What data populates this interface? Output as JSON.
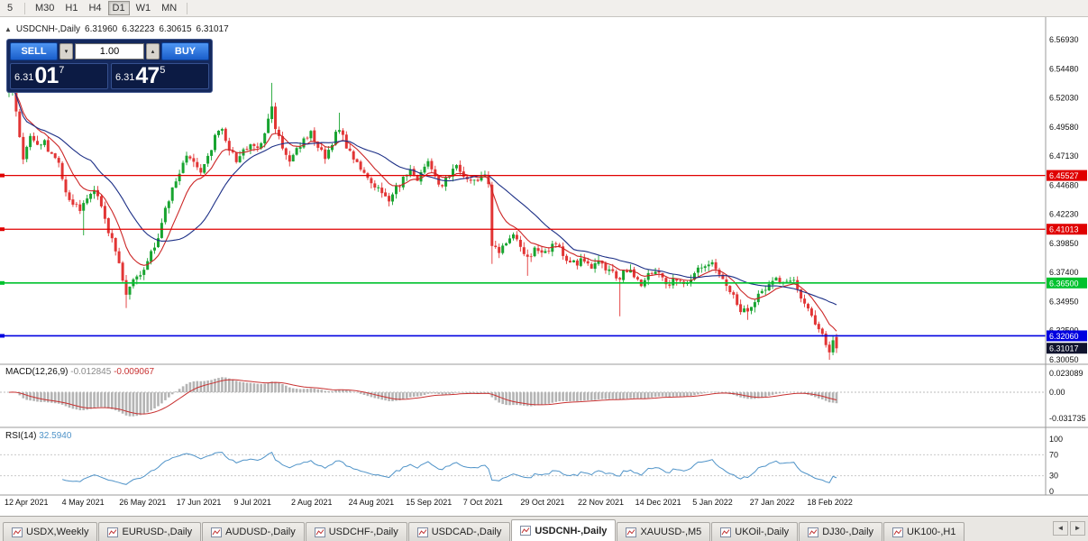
{
  "toolbar": {
    "timeframes": [
      {
        "label": "5"
      },
      {
        "label": "M30"
      },
      {
        "label": "H1"
      },
      {
        "label": "H4"
      },
      {
        "label": "D1"
      },
      {
        "label": "W1"
      },
      {
        "label": "MN"
      }
    ]
  },
  "chart_header": {
    "collapse": "▲",
    "symbol": "USDCNH-,Daily",
    "open": "6.31960",
    "high": "6.32223",
    "low": "6.30615",
    "close": "6.31017"
  },
  "trade_panel": {
    "sell": "SELL",
    "buy": "BUY",
    "volume": "1.00",
    "spin_down": "▾",
    "spin_up": "▴",
    "bid_prefix": "6.31",
    "bid_big": "01",
    "bid_sup": "7",
    "ask_prefix": "6.31",
    "ask_big": "47",
    "ask_sup": "5"
  },
  "chart_data": {
    "type": "candlestick",
    "title": "USDCNH-,Daily",
    "ohlc": {
      "open": 6.3196,
      "high": 6.32223,
      "low": 6.30615,
      "close": 6.31017
    },
    "y_axis_labels": [
      "6.56930",
      "6.54480",
      "6.52030",
      "6.49580",
      "6.47130",
      "6.44680",
      "6.42230",
      "6.39850",
      "6.37400",
      "6.34950",
      "6.32500",
      "6.30050"
    ],
    "x_axis_labels": [
      "12 Apr 2021",
      "4 May 2021",
      "26 May 2021",
      "17 Jun 2021",
      "9 Jul 2021",
      "2 Aug 2021",
      "24 Aug 2021",
      "15 Sep 2021",
      "7 Oct 2021",
      "29 Oct 2021",
      "22 Nov 2021",
      "14 Dec 2021",
      "5 Jan 2022",
      "27 Jan 2022",
      "18 Feb 2022"
    ],
    "price_scale": {
      "top_price": 6.5693,
      "bottom_price": 6.3005
    },
    "up_color": "#18a430",
    "down_color": "#e23535",
    "horizontal_lines": [
      {
        "price": 6.45527,
        "label": "6.45527",
        "color": "#e00000",
        "width": 1.2
      },
      {
        "price": 6.41013,
        "label": "6.41013",
        "color": "#e00000",
        "width": 1.2
      },
      {
        "price": 6.365,
        "label": "6.36500",
        "color": "#00c22e",
        "width": 1.6
      },
      {
        "price": 6.3206,
        "label": "6.32060",
        "color": "#0000e0",
        "width": 1.6
      }
    ],
    "current_price": {
      "value": 6.31017,
      "label": "6.31017",
      "bg": "#10142e"
    },
    "moving_averages": [
      {
        "type": "ema",
        "period": 10,
        "color": "#cc2626"
      },
      {
        "type": "sma",
        "period": 24,
        "color": "#1c2f86"
      }
    ],
    "num_candles": 234,
    "noise": 0.006,
    "wick": 0.0045,
    "anchors": [
      [
        0,
        6.525
      ],
      [
        1,
        6.531
      ],
      [
        2,
        6.512
      ],
      [
        3,
        6.49
      ],
      [
        4,
        6.47
      ],
      [
        5,
        6.479
      ],
      [
        6,
        6.488
      ],
      [
        8,
        6.478
      ],
      [
        10,
        6.484
      ],
      [
        12,
        6.472
      ],
      [
        14,
        6.464
      ],
      [
        16,
        6.444
      ],
      [
        18,
        6.431
      ],
      [
        20,
        6.427
      ],
      [
        22,
        6.437
      ],
      [
        24,
        6.443
      ],
      [
        26,
        6.431
      ],
      [
        28,
        6.408
      ],
      [
        30,
        6.394
      ],
      [
        32,
        6.368
      ],
      [
        33,
        6.354
      ],
      [
        34,
        6.362
      ],
      [
        36,
        6.369
      ],
      [
        38,
        6.378
      ],
      [
        40,
        6.39
      ],
      [
        42,
        6.403
      ],
      [
        44,
        6.426
      ],
      [
        46,
        6.446
      ],
      [
        48,
        6.459
      ],
      [
        50,
        6.473
      ],
      [
        52,
        6.464
      ],
      [
        54,
        6.455
      ],
      [
        56,
        6.471
      ],
      [
        58,
        6.487
      ],
      [
        60,
        6.494
      ],
      [
        62,
        6.477
      ],
      [
        64,
        6.468
      ],
      [
        66,
        6.475
      ],
      [
        68,
        6.483
      ],
      [
        70,
        6.478
      ],
      [
        72,
        6.489
      ],
      [
        74,
        6.516
      ],
      [
        75,
        6.494
      ],
      [
        77,
        6.477
      ],
      [
        79,
        6.469
      ],
      [
        81,
        6.476
      ],
      [
        83,
        6.485
      ],
      [
        85,
        6.492
      ],
      [
        87,
        6.479
      ],
      [
        89,
        6.471
      ],
      [
        91,
        6.482
      ],
      [
        93,
        6.496
      ],
      [
        95,
        6.479
      ],
      [
        97,
        6.469
      ],
      [
        99,
        6.461
      ],
      [
        101,
        6.454
      ],
      [
        103,
        6.447
      ],
      [
        105,
        6.439
      ],
      [
        107,
        6.433
      ],
      [
        109,
        6.444
      ],
      [
        111,
        6.452
      ],
      [
        113,
        6.458
      ],
      [
        115,
        6.449
      ],
      [
        117,
        6.461
      ],
      [
        118,
        6.469
      ],
      [
        120,
        6.454
      ],
      [
        122,
        6.447
      ],
      [
        124,
        6.455
      ],
      [
        126,
        6.462
      ],
      [
        128,
        6.454
      ],
      [
        130,
        6.449
      ],
      [
        132,
        6.452
      ],
      [
        134,
        6.456
      ],
      [
        135,
        6.448
      ],
      [
        136,
        6.398
      ],
      [
        138,
        6.391
      ],
      [
        140,
        6.398
      ],
      [
        142,
        6.403
      ],
      [
        144,
        6.395
      ],
      [
        146,
        6.384
      ],
      [
        148,
        6.392
      ],
      [
        150,
        6.388
      ],
      [
        152,
        6.393
      ],
      [
        154,
        6.397
      ],
      [
        156,
        6.389
      ],
      [
        158,
        6.384
      ],
      [
        160,
        6.381
      ],
      [
        162,
        6.386
      ],
      [
        164,
        6.379
      ],
      [
        166,
        6.384
      ],
      [
        168,
        6.377
      ],
      [
        170,
        6.373
      ],
      [
        172,
        6.369
      ],
      [
        174,
        6.376
      ],
      [
        176,
        6.371
      ],
      [
        178,
        6.365
      ],
      [
        180,
        6.372
      ],
      [
        182,
        6.377
      ],
      [
        184,
        6.369
      ],
      [
        186,
        6.364
      ],
      [
        188,
        6.37
      ],
      [
        190,
        6.365
      ],
      [
        192,
        6.369
      ],
      [
        194,
        6.375
      ],
      [
        196,
        6.381
      ],
      [
        198,
        6.384
      ],
      [
        200,
        6.373
      ],
      [
        202,
        6.361
      ],
      [
        204,
        6.353
      ],
      [
        206,
        6.343
      ],
      [
        208,
        6.339
      ],
      [
        210,
        6.351
      ],
      [
        212,
        6.359
      ],
      [
        214,
        6.365
      ],
      [
        216,
        6.371
      ],
      [
        218,
        6.365
      ],
      [
        220,
        6.369
      ],
      [
        222,
        6.361
      ],
      [
        224,
        6.347
      ],
      [
        226,
        6.337
      ],
      [
        228,
        6.329
      ],
      [
        230,
        6.311
      ],
      [
        231,
        6.305
      ],
      [
        232,
        6.318
      ],
      [
        233,
        6.31
      ]
    ],
    "spike_highs": [
      [
        1,
        6.534
      ],
      [
        74,
        6.533
      ],
      [
        93,
        6.508
      ]
    ],
    "spike_lows": [
      [
        21,
        6.405
      ],
      [
        33,
        6.344
      ],
      [
        136,
        6.381
      ],
      [
        146,
        6.371
      ],
      [
        172,
        6.337
      ],
      [
        208,
        6.334
      ],
      [
        231,
        6.3005
      ]
    ],
    "last_candle": {
      "o": 6.3196,
      "h": 6.32223,
      "l": 6.30615,
      "c": 6.31017
    },
    "macd": {
      "title": "MACD(12,26,9)",
      "value_main": "-0.012845",
      "value_signal": "-0.009067",
      "fast": 12,
      "slow": 26,
      "signal": 9,
      "scale_max": 0.023089,
      "scale_min": -0.031735,
      "scale_labels": [
        "0.023089",
        "0.00",
        "-0.031735"
      ],
      "histogram_color": "#b4b4b4",
      "signal_color": "#c83232"
    },
    "rsi": {
      "title": "RSI(14)",
      "value": "32.5940",
      "period": 14,
      "scale_labels": [
        "100",
        "70",
        "30",
        "0"
      ],
      "levels": [
        70,
        30
      ],
      "line_color": "#4f93c8"
    }
  },
  "tabs": {
    "items": [
      {
        "label": "USDX,Weekly"
      },
      {
        "label": "EURUSD-,Daily"
      },
      {
        "label": "AUDUSD-,Daily"
      },
      {
        "label": "USDCHF-,Daily"
      },
      {
        "label": "USDCAD-,Daily"
      },
      {
        "label": "USDCNH-,Daily"
      },
      {
        "label": "XAUUSD-,M5"
      },
      {
        "label": "UKOil-,Daily"
      },
      {
        "label": "DJ30-,Daily"
      },
      {
        "label": "UK100-,H1"
      }
    ],
    "scroll_left": "◄",
    "scroll_right": "►"
  }
}
